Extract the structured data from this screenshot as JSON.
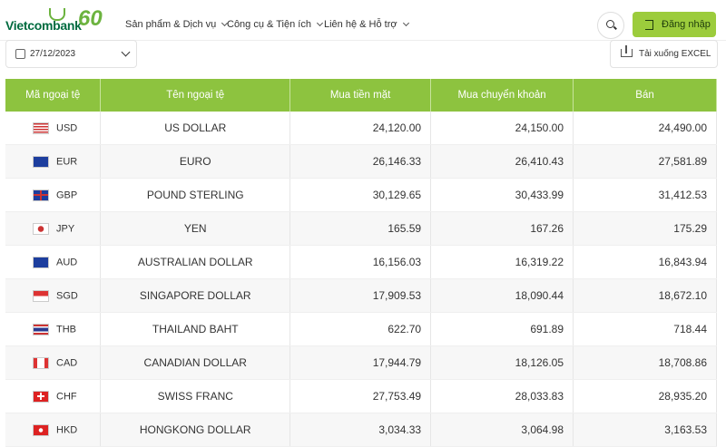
{
  "header": {
    "logo": "Vietcombank",
    "anniversary": "60",
    "nav": [
      "Sản phẩm & Dịch vụ",
      "Công cụ & Tiện ích",
      "Liên hệ & Hỗ trợ"
    ],
    "login": "Đăng nhập"
  },
  "toolbar": {
    "date": "27/12/2023",
    "download": "Tải xuống EXCEL"
  },
  "table": {
    "columns": [
      "Mã ngoại tệ",
      "Tên ngoại tệ",
      "Mua tiền mặt",
      "Mua chuyển khoản",
      "Bán"
    ],
    "rows": [
      [
        "USD",
        "US DOLLAR",
        "24,120.00",
        "24,150.00",
        "24,490.00"
      ],
      [
        "EUR",
        "EURO",
        "26,146.33",
        "26,410.43",
        "27,581.89"
      ],
      [
        "GBP",
        "POUND STERLING",
        "30,129.65",
        "30,433.99",
        "31,412.53"
      ],
      [
        "JPY",
        "YEN",
        "165.59",
        "167.26",
        "175.29"
      ],
      [
        "AUD",
        "AUSTRALIAN DOLLAR",
        "16,156.03",
        "16,319.22",
        "16,843.94"
      ],
      [
        "SGD",
        "SINGAPORE DOLLAR",
        "17,909.53",
        "18,090.44",
        "18,672.10"
      ],
      [
        "THB",
        "THAILAND BAHT",
        "622.70",
        "691.89",
        "718.44"
      ],
      [
        "CAD",
        "CANADIAN DOLLAR",
        "17,944.79",
        "18,126.05",
        "18,708.86"
      ],
      [
        "CHF",
        "SWISS FRANC",
        "27,753.49",
        "28,033.83",
        "28,935.20"
      ],
      [
        "HKD",
        "HONGKONG DOLLAR",
        "3,034.33",
        "3,064.98",
        "3,163.53"
      ]
    ]
  }
}
